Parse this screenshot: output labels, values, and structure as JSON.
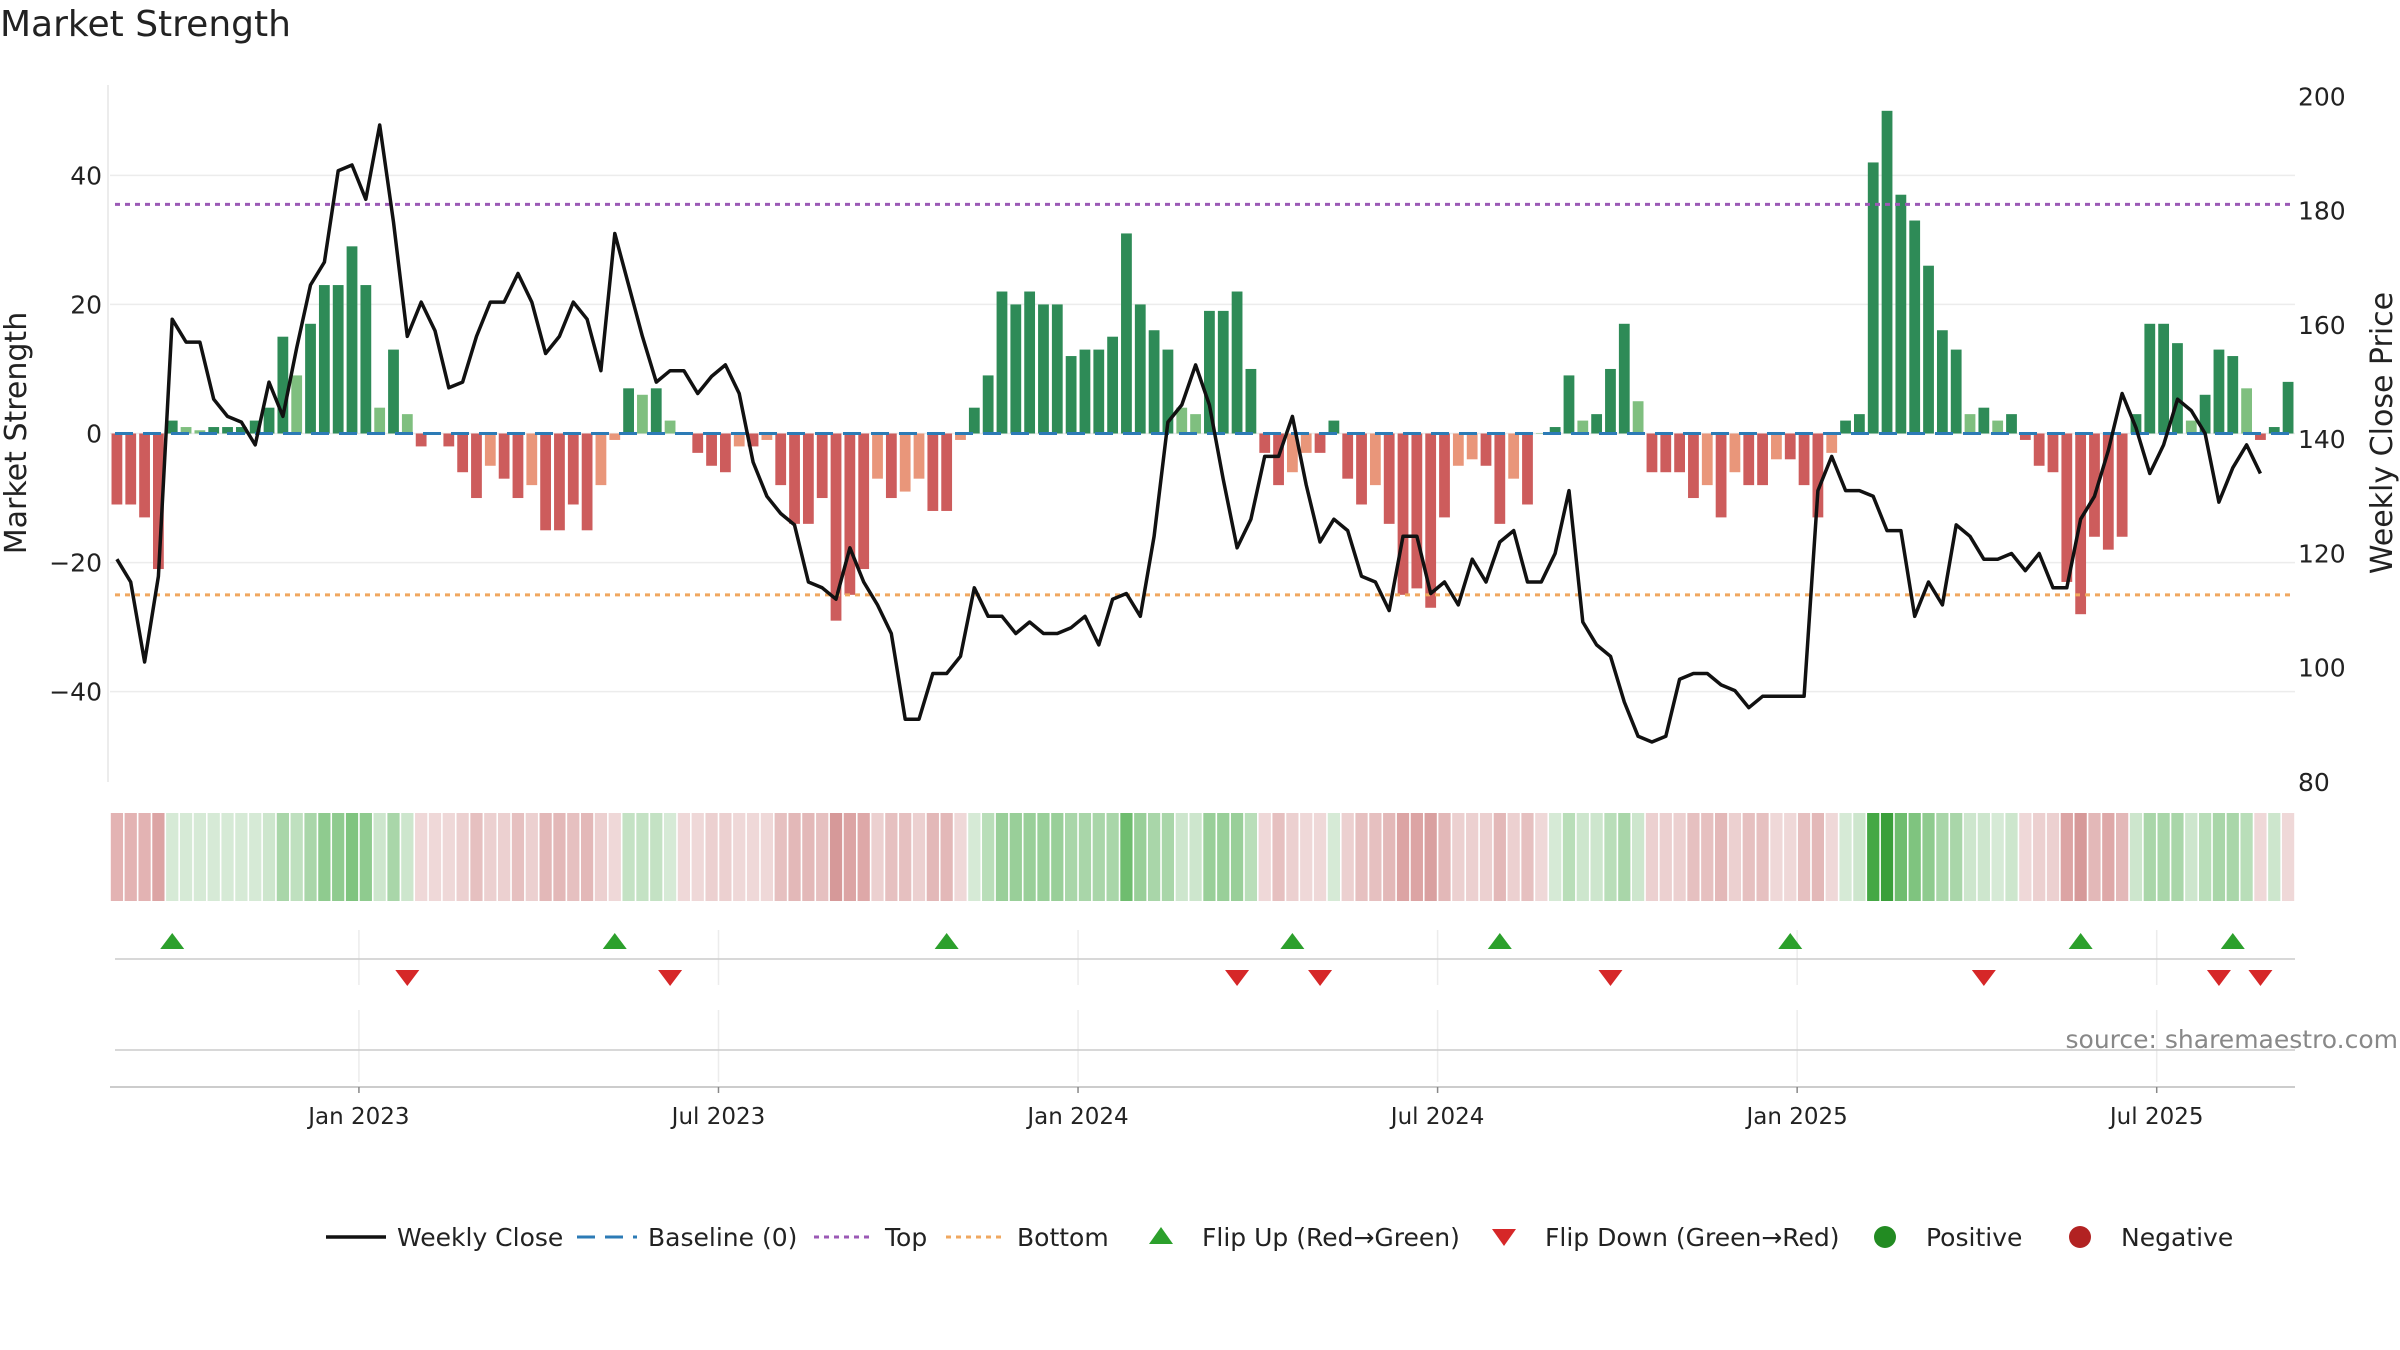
{
  "chart_data": {
    "type": "bar+line",
    "title": "Market Strength",
    "ylabel_left": "Market Strength",
    "ylabel_right": "Weekly Close Price",
    "ylim_left": [
      -54,
      54
    ],
    "ylim_right": [
      80,
      202
    ],
    "yticks_left": [
      40,
      20,
      0,
      -20,
      -40
    ],
    "yticks_left_labels": [
      "40",
      "20",
      "0",
      "−20",
      "−40"
    ],
    "yticks_right": [
      200,
      180,
      160,
      140,
      120,
      100,
      80
    ],
    "x_tick_labels": [
      {
        "label": "Jan 2023",
        "week": 18
      },
      {
        "label": "Jul 2023",
        "week": 44
      },
      {
        "label": "Jan 2024",
        "week": 70
      },
      {
        "label": "Jul 2024",
        "week": 96
      },
      {
        "label": "Jan 2025",
        "week": 122
      },
      {
        "label": "Jul 2025",
        "week": 148
      }
    ],
    "top_threshold": 35.5,
    "bottom_threshold": -25,
    "baseline": 0,
    "strength": [
      -11,
      -11,
      -13,
      -21,
      2,
      1,
      0.5,
      1,
      1,
      1,
      2,
      4,
      15,
      9,
      17,
      23,
      23,
      29,
      23,
      4,
      13,
      3,
      -2,
      0,
      -2,
      -6,
      -10,
      -5,
      -7,
      -10,
      -8,
      -15,
      -15,
      -11,
      -15,
      -8,
      -1,
      7,
      6,
      7,
      2,
      0,
      -3,
      -5,
      -6,
      -2,
      -2,
      -1,
      -8,
      -14,
      -14,
      -10,
      -29,
      -25,
      -21,
      -7,
      -10,
      -9,
      -7,
      -12,
      -12,
      -1,
      4,
      9,
      22,
      20,
      22,
      20,
      20,
      12,
      13,
      13,
      15,
      31,
      20,
      16,
      13,
      4,
      3,
      19,
      19,
      22,
      10,
      -3,
      -8,
      -6,
      -3,
      -3,
      2,
      -7,
      -11,
      -8,
      -14,
      -25,
      -24,
      -27,
      -13,
      -5,
      -4,
      -5,
      -14,
      -7,
      -11,
      0,
      1,
      9,
      2,
      3,
      10,
      17,
      5,
      -6,
      -6,
      -6,
      -10,
      -8,
      -13,
      -6,
      -8,
      -8,
      -4,
      -4,
      -8,
      -13,
      -3,
      2,
      3,
      42,
      50,
      37,
      33,
      26,
      16,
      13,
      3,
      4,
      2,
      3,
      -1,
      -5,
      -6,
      -23,
      -28,
      -16,
      -18,
      -16,
      3,
      17,
      17,
      14,
      2,
      6,
      13,
      12,
      7,
      -1,
      1,
      8
    ],
    "close": [
      119,
      115,
      101,
      116,
      161,
      157,
      157,
      147,
      144,
      143,
      139,
      150,
      144,
      156,
      167,
      171,
      187,
      188,
      182,
      195,
      178,
      158,
      164,
      159,
      149,
      150,
      158,
      164,
      164,
      169,
      164,
      155,
      158,
      164,
      161,
      152,
      176,
      167,
      158,
      150,
      152,
      152,
      148,
      151,
      153,
      148,
      136,
      130,
      127,
      125,
      115,
      114,
      112,
      121,
      115,
      111,
      106,
      91,
      91,
      99,
      99,
      102,
      114,
      109,
      109,
      106,
      108,
      106,
      106,
      107,
      109,
      104,
      112,
      113,
      109,
      123,
      143,
      146,
      153,
      146,
      133,
      121,
      126,
      137,
      137,
      144,
      132,
      122,
      126,
      124,
      116,
      115,
      110,
      123,
      123,
      113,
      115,
      111,
      119,
      115,
      122,
      124,
      115,
      115,
      120,
      131,
      108,
      104,
      102,
      94,
      88,
      87,
      88,
      98,
      99,
      99,
      97,
      96,
      93,
      95,
      95,
      95,
      95,
      131,
      137,
      131,
      131,
      130,
      124,
      124,
      109,
      115,
      111,
      125,
      123,
      119,
      119,
      120,
      117,
      120,
      114,
      114,
      126,
      130,
      138,
      148,
      142,
      134,
      139,
      147,
      145,
      141,
      129,
      135,
      139,
      134
    ],
    "heat_colors": [
      "#e3b3b3",
      "#e3b3b3",
      "#e3b3b3",
      "#dca4a4",
      "#d6ead6",
      "#d6ead6",
      "#d6ead6",
      "#d6ead6",
      "#d6ead6",
      "#d6ead6",
      "#d6ead6",
      "#cde6cd",
      "#a9d6a9",
      "#bfe0bf",
      "#a9d6a9",
      "#8fcb8f",
      "#8fcb8f",
      "#7fc47f",
      "#8fcb8f",
      "#cde6cd",
      "#a9d6a9",
      "#cde6cd",
      "#efd8d8",
      "#efd8d8",
      "#efd8d8",
      "#ecd0d0",
      "#e6c0c0",
      "#ecd0d0",
      "#ecd0d0",
      "#e6c0c0",
      "#ecd0d0",
      "#e3b8b8",
      "#e3b8b8",
      "#e6c0c0",
      "#e3b8b8",
      "#ecd0d0",
      "#efd8d8",
      "#c4e2c4",
      "#c4e2c4",
      "#c4e2c4",
      "#d6ead6",
      "#efd8d8",
      "#efd8d8",
      "#ecd0d0",
      "#ecd0d0",
      "#efd8d8",
      "#efd8d8",
      "#efd8d8",
      "#e6c0c0",
      "#e3b8b8",
      "#e3b8b8",
      "#e6c0c0",
      "#d69999",
      "#dca4a4",
      "#dea8a8",
      "#ecd0d0",
      "#e6c0c0",
      "#e6c0c0",
      "#ecd0d0",
      "#e3b8b8",
      "#e3b8b8",
      "#efd8d8",
      "#d6ead6",
      "#b9deb9",
      "#99cf99",
      "#99cf99",
      "#99cf99",
      "#99cf99",
      "#99cf99",
      "#a9d6a9",
      "#a9d6a9",
      "#a9d6a9",
      "#a9d6a9",
      "#6fbd6f",
      "#99cf99",
      "#a9d6a9",
      "#a9d6a9",
      "#cde6cd",
      "#cde6cd",
      "#99cf99",
      "#99cf99",
      "#99cf99",
      "#b9deb9",
      "#efd8d8",
      "#e6c0c0",
      "#ecd0d0",
      "#efd8d8",
      "#efd8d8",
      "#d6ead6",
      "#ecd0d0",
      "#e6c0c0",
      "#e6c0c0",
      "#e3b8b8",
      "#dca4a4",
      "#dca4a4",
      "#d9a0a0",
      "#e3b8b8",
      "#ecd0d0",
      "#ecd0d0",
      "#ecd0d0",
      "#e3b8b8",
      "#ecd0d0",
      "#e6c0c0",
      "#efd8d8",
      "#d6ead6",
      "#b9deb9",
      "#cde6cd",
      "#cde6cd",
      "#b9deb9",
      "#a9d6a9",
      "#cde6cd",
      "#ecd0d0",
      "#ecd0d0",
      "#ecd0d0",
      "#e6c0c0",
      "#e6c0c0",
      "#e3b8b8",
      "#ecd0d0",
      "#e6c0c0",
      "#e6c0c0",
      "#efd8d8",
      "#efd8d8",
      "#e6c0c0",
      "#e3b8b8",
      "#efd8d8",
      "#d6ead6",
      "#cde6cd",
      "#45a845",
      "#3a9f3a",
      "#6fbd6f",
      "#7fc47f",
      "#8fcb8f",
      "#a9d6a9",
      "#a9d6a9",
      "#cde6cd",
      "#cde6cd",
      "#d6ead6",
      "#cde6cd",
      "#efd8d8",
      "#ecd0d0",
      "#ecd0d0",
      "#dca4a4",
      "#d69999",
      "#e3b8b8",
      "#dea8a8",
      "#e3b8b8",
      "#cde6cd",
      "#a9d6a9",
      "#a9d6a9",
      "#a9d6a9",
      "#cde6cd",
      "#b9deb9",
      "#a9d6a9",
      "#a9d6a9",
      "#b9deb9",
      "#efd8d8",
      "#cde6cd",
      "#efd8d8"
    ],
    "flip_up_weeks": [
      4,
      36,
      60,
      85,
      100,
      121,
      142,
      153
    ],
    "flip_down_weeks": [
      21,
      40,
      81,
      87,
      108,
      135,
      152,
      155
    ],
    "legend": [
      {
        "type": "line",
        "label": "Weekly Close",
        "color": "#111111"
      },
      {
        "type": "dash",
        "label": "Baseline (0)",
        "color": "#2c7bb6"
      },
      {
        "type": "dot",
        "label": "Top",
        "color": "#9b59b6"
      },
      {
        "type": "dot",
        "label": "Bottom",
        "color": "#f0a860"
      },
      {
        "type": "tri-up",
        "label": "Flip Up (Red→Green)",
        "color": "#2ca02c"
      },
      {
        "type": "tri-down",
        "label": "Flip Down (Green→Red)",
        "color": "#d62728"
      },
      {
        "type": "circle",
        "label": "Positive",
        "color": "#228b22"
      },
      {
        "type": "circle",
        "label": "Negative",
        "color": "#b22222"
      }
    ],
    "colors": {
      "pos_strong": "#2e8b57",
      "pos_weak": "#7fbf7f",
      "neg_strong": "#cd5c5c",
      "neg_weak": "#e9967a",
      "baseline": "#2c7bb6",
      "top": "#9b59b6",
      "bottom": "#f0a860",
      "close": "#111111",
      "flip_up": "#2ca02c",
      "flip_down": "#d62728"
    },
    "source": "source: sharemaestro.com"
  }
}
